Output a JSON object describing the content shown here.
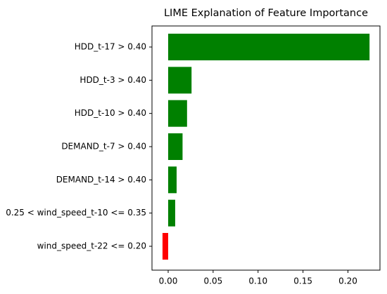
{
  "chart_data": {
    "type": "barh",
    "title": "LIME Explanation of Feature Importance",
    "categories": [
      "HDD_t-17 > 0.40",
      "HDD_t-3 > 0.40",
      "HDD_t-10 > 0.40",
      "DEMAND_t-7 > 0.40",
      "DEMAND_t-14 > 0.40",
      "0.25 < wind_speed_t-10 <= 0.35",
      "wind_speed_t-22 <= 0.20"
    ],
    "values": [
      0.224,
      0.026,
      0.021,
      0.016,
      0.0094,
      0.0078,
      -0.0063
    ],
    "colors": [
      "#008000",
      "#008000",
      "#008000",
      "#008000",
      "#008000",
      "#008000",
      "#ff0000"
    ],
    "xlim": [
      -0.018,
      0.2356
    ],
    "xticks": [
      {
        "value": 0,
        "label": "0.00"
      },
      {
        "value": 0.05,
        "label": "0.05"
      },
      {
        "value": 0.1,
        "label": "0.10"
      },
      {
        "value": 0.15,
        "label": "0.15"
      },
      {
        "value": 0.2,
        "label": "0.20"
      }
    ]
  }
}
